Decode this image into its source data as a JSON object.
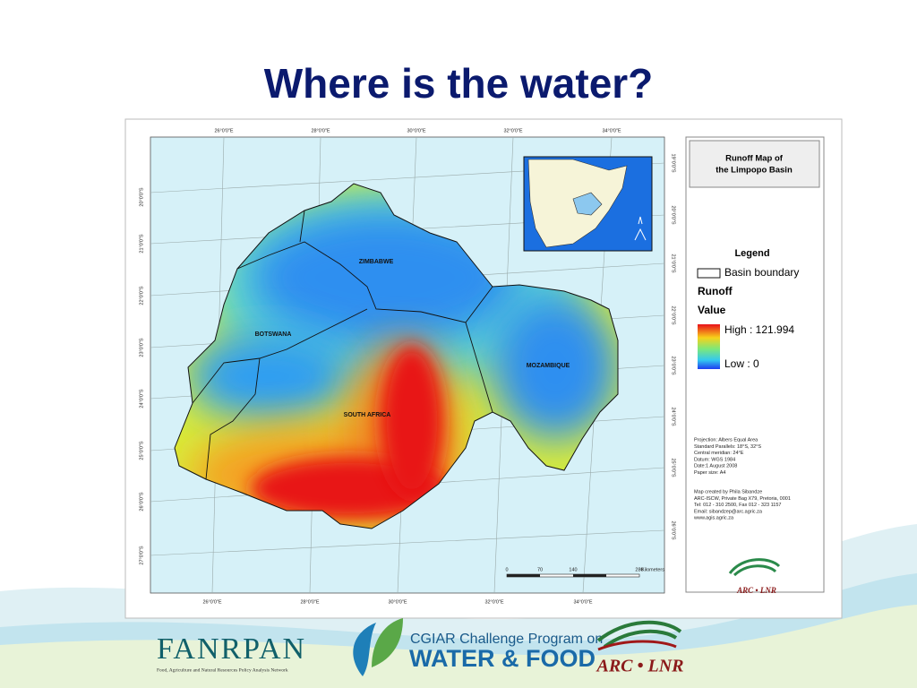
{
  "title": "Where is the water?",
  "map": {
    "lon_labels": [
      "26°0'0\"E",
      "28°0'0\"E",
      "30°0'0\"E",
      "32°0'0\"E",
      "34°0'0\"E"
    ],
    "lat_labels_left": [
      "20°0'0\"S",
      "21°0'0\"S",
      "22°0'0\"S",
      "23°0'0\"S",
      "24°0'0\"S",
      "25°0'0\"S",
      "26°0'0\"S",
      "27°0'0\"S"
    ],
    "lat_labels_right": [
      "19°0'0\"S",
      "20°0'0\"S",
      "21°0'0\"S",
      "22°0'0\"S",
      "23°0'0\"S",
      "24°0'0\"S",
      "25°0'0\"S",
      "26°0'0\"S"
    ],
    "countries": [
      "ZIMBABWE",
      "BOTSWANA",
      "SOUTH AFRICA",
      "MOZAMBIQUE"
    ],
    "scale": [
      "0",
      "70",
      "140",
      "280",
      "Kilometers"
    ]
  },
  "panel": {
    "title": [
      "Runoff Map of",
      "the Limpopo Basin"
    ],
    "legend_title": "Legend",
    "boundary": "Basin boundary",
    "runoff": "Runoff",
    "value": "Value",
    "high": "High : 121.994",
    "low": "Low : 0",
    "metadata": [
      "Projection: Albers Equal Area",
      "Standard Parallels: 18°S, 32°S",
      "Central meridian: 24°E",
      "Datum: WGS 1984",
      "Date:1 August 2008",
      "Paper size: A4"
    ],
    "credits": [
      "Map created by Phila Sibandze",
      "ARC-ISCW, Private Bag X79, Pretoria, 0001",
      "Tel: 012 - 310 2500, Fax 012 - 323 1157",
      "Email: sibandzep@arc.agric.za",
      "www.agis.agric.za"
    ],
    "logo": "ARC • LNR"
  },
  "footer": {
    "fanrpan": "FANRPAN",
    "fanrpan_sub": "Food, Agriculture and Natural Resources Policy Analysis Network",
    "cgiar_line1": "CGIAR Challenge Program on",
    "cgiar_line2": "WATER & FOOD",
    "arc": "ARC • LNR"
  }
}
